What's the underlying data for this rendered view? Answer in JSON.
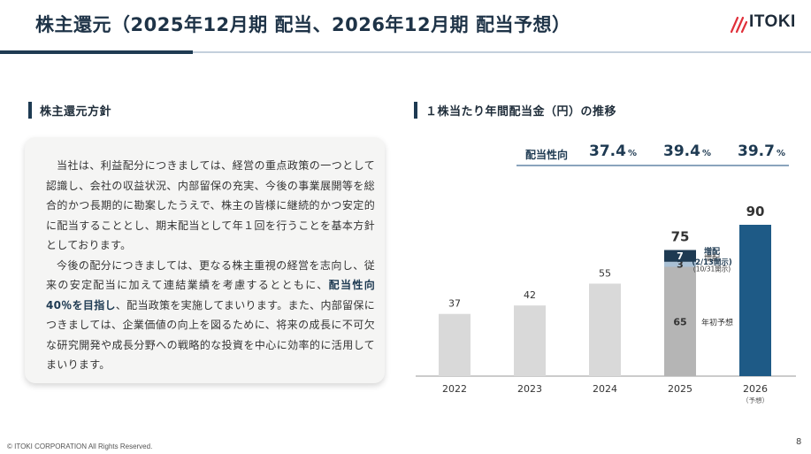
{
  "slide": {
    "title": "株主還元（2025年12月期 配当、2026年12月期 配当予想）",
    "logo_text": "ITOKI",
    "footer": "© ITOKI CORPORATION All Rights Reserved.",
    "page_number": "8"
  },
  "policy": {
    "heading": "株主還元方針",
    "para1": "当社は、利益配分につきましては、経営の重点政策の一つとして認識し、会社の収益状況、内部留保の充実、今後の事業展開等を総合的かつ長期的に勘案したうえで、株主の皆様に継続的かつ安定的に配当することとし、期末配当として年１回を行うことを基本方針としております。",
    "para2_pre": "今後の配分につきましては、更なる株主重視の経営を志向し、従来の安定配当に加えて連結業績を考慮するとともに、",
    "para2_bold": "配当性向40％を目指し",
    "para2_post": "、配当政策を実施してまいります。また、内部留保につきましては、企業価値の向上を図るために、将来の成長に不可欠な研究開発や成長分野への戦略的な投資を中心に効率的に活用してまいります。"
  },
  "dividend": {
    "heading": "１株当たり年間配当金（円）の推移",
    "payout_label": "配当性向",
    "payout_ratios": [
      {
        "value": "37.4",
        "unit": "%"
      },
      {
        "value": "39.4",
        "unit": "%"
      },
      {
        "value": "39.7",
        "unit": "%"
      }
    ]
  },
  "chart_data": {
    "type": "bar",
    "title": "１株当たり年間配当金（円）の推移",
    "categories": [
      "2022",
      "2023",
      "2024",
      "2025",
      "2026"
    ],
    "category_notes": [
      "",
      "",
      "",
      "",
      "（予想）"
    ],
    "values": [
      37,
      42,
      55,
      75,
      90
    ],
    "value_labels": [
      "37",
      "42",
      "55",
      "75",
      "90"
    ],
    "breakdown_2025": [
      {
        "name": "年初予想",
        "value": 65,
        "color": "#b5b5b5"
      },
      {
        "name": "増配",
        "sub": "(10/31開示)",
        "value": 3,
        "color": "#a9c0d4"
      },
      {
        "name": "増配",
        "sub": "(2/13開示)",
        "value": 7,
        "color": "#1e3a52"
      }
    ],
    "colors": {
      "past": "#d9d9d9",
      "forecast": "#1e5a86",
      "axis": "#999999"
    },
    "ylim": [
      0,
      100
    ]
  }
}
